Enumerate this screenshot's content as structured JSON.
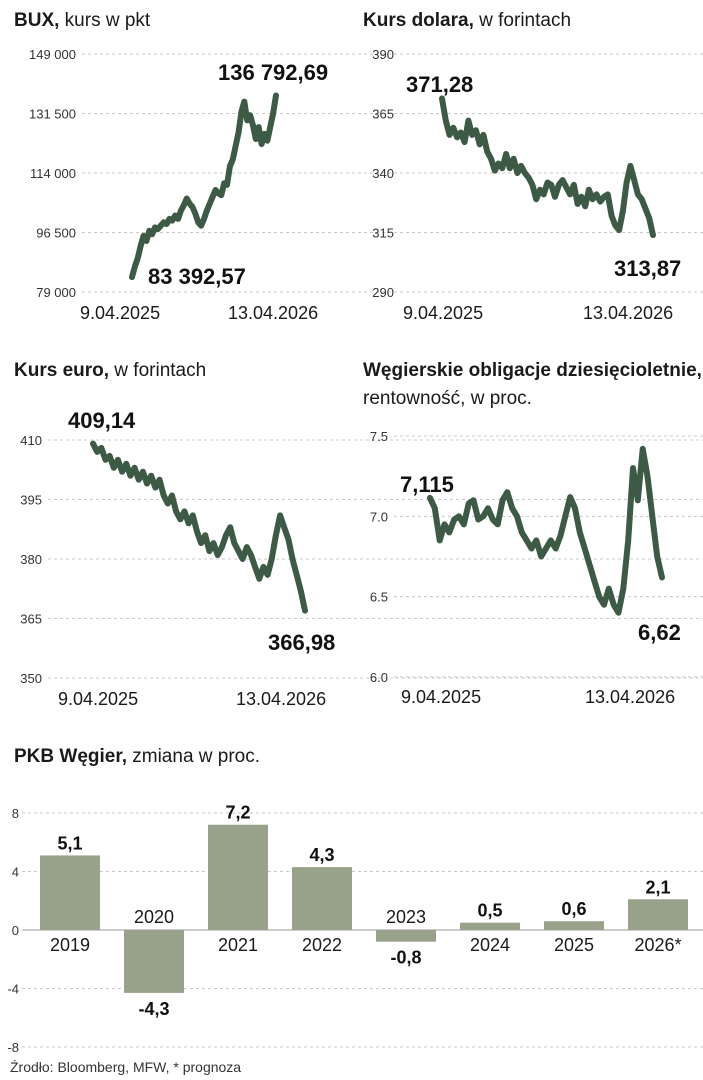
{
  "chart_data": [
    {
      "id": "bux",
      "type": "line",
      "title": "BUX,",
      "subtitle": "kurs w pkt",
      "ylim": [
        79000,
        149000
      ],
      "yticks": [
        149000,
        131500,
        114000,
        96500,
        79000
      ],
      "ytick_labels": [
        "149 000",
        "131 500",
        "114 000",
        "96 500",
        "79 000"
      ],
      "x_labels": [
        "9.04.2025",
        "13.04.2026"
      ],
      "grid": true,
      "start_annotation": "83 392,57",
      "end_annotation": "136 792,69",
      "series": [
        {
          "values": [
            83392,
            86500,
            89000,
            92500,
            95500,
            94000,
            97000,
            96000,
            98000,
            97500,
            98500,
            99500,
            99000,
            100500,
            100000,
            101500,
            100500,
            103000,
            104500,
            106500,
            105000,
            104000,
            102000,
            99500,
            98500,
            100500,
            103000,
            105000,
            107000,
            109000,
            108000,
            107500,
            111000,
            110500,
            116000,
            118000,
            122000,
            126000,
            132000,
            135000,
            129500,
            131000,
            128000,
            124000,
            127500,
            122500,
            125500,
            123500,
            127500,
            131500,
            136792
          ]
        }
      ]
    },
    {
      "id": "usd",
      "type": "line",
      "title": "Kurs dolara,",
      "subtitle": "w forintach",
      "ylim": [
        290,
        390
      ],
      "yticks": [
        390,
        365,
        340,
        315,
        290
      ],
      "ytick_labels": [
        "390",
        "365",
        "340",
        "315",
        "290"
      ],
      "x_labels": [
        "9.04.2025",
        "13.04.2026"
      ],
      "grid": true,
      "start_annotation": "371,28",
      "end_annotation": "313,87",
      "series": [
        {
          "values": [
            371.3,
            362,
            356,
            359,
            355,
            357,
            353,
            362,
            356,
            358,
            352,
            356,
            349,
            346,
            341,
            344,
            342,
            348,
            342,
            346,
            340,
            343,
            340,
            338,
            335,
            329,
            333,
            331,
            336,
            335,
            330,
            335,
            337,
            334,
            331,
            335,
            327,
            330,
            326,
            333,
            329,
            331,
            328,
            330,
            331,
            322,
            318,
            316,
            324,
            336,
            343,
            337,
            331,
            329,
            325,
            321,
            313.9
          ]
        }
      ]
    },
    {
      "id": "eur",
      "type": "line",
      "title": "Kurs euro,",
      "subtitle": "w forintach",
      "ylim": [
        350,
        410
      ],
      "yticks": [
        410,
        395,
        380,
        365,
        350
      ],
      "ytick_labels": [
        "410",
        "395",
        "380",
        "365",
        "350"
      ],
      "x_labels": [
        "9.04.2025",
        "13.04.2026"
      ],
      "grid": true,
      "start_annotation": "409,14",
      "end_annotation": "366,98",
      "series": [
        {
          "values": [
            409.1,
            407,
            408,
            405,
            406,
            403,
            405,
            402,
            404,
            401,
            403,
            400,
            402,
            399,
            401,
            398,
            400,
            396,
            394,
            396,
            392,
            390,
            392,
            389,
            391,
            387,
            384,
            386,
            382,
            384,
            381,
            383,
            386,
            388,
            384,
            382,
            380,
            383,
            381,
            378,
            375,
            378,
            376,
            380,
            386,
            391,
            388,
            385,
            380,
            376,
            372,
            366.98
          ]
        }
      ]
    },
    {
      "id": "bonds",
      "type": "line",
      "title": "Węgierskie obligacje dziesięcioletnie,",
      "subtitle": "rentowność, w proc.",
      "ylim": [
        6.0,
        7.5
      ],
      "yticks": [
        7.5,
        7.0,
        6.5,
        6.0
      ],
      "ytick_labels": [
        "7.5",
        "7.0",
        "6.5",
        "6.0"
      ],
      "x_labels": [
        "9.04.2025",
        "13.04.2026"
      ],
      "grid": true,
      "start_annotation": "7,115",
      "end_annotation": "6,62",
      "series": [
        {
          "values": [
            7.115,
            7.05,
            6.85,
            6.95,
            6.9,
            6.98,
            7.0,
            6.95,
            7.08,
            7.1,
            6.98,
            7.0,
            7.05,
            6.98,
            6.95,
            7.1,
            7.15,
            7.05,
            7.0,
            6.9,
            6.85,
            6.8,
            6.85,
            6.75,
            6.8,
            6.85,
            6.8,
            6.88,
            7.0,
            7.12,
            7.05,
            6.9,
            6.8,
            6.7,
            6.6,
            6.5,
            6.45,
            6.55,
            6.45,
            6.4,
            6.55,
            6.85,
            7.3,
            7.1,
            7.42,
            7.25,
            7.0,
            6.75,
            6.62
          ]
        }
      ]
    },
    {
      "id": "gdp",
      "type": "bar",
      "title": "PKB Węgier,",
      "subtitle": "zmiana w proc.",
      "categories": [
        "2019",
        "2020",
        "2021",
        "2022",
        "2023",
        "2024",
        "2025",
        "2026*"
      ],
      "values": [
        5.1,
        -4.3,
        7.2,
        4.3,
        -0.8,
        0.5,
        0.6,
        2.1
      ],
      "value_labels": [
        "5,1",
        "-4,3",
        "7,2",
        "4,3",
        "-0,8",
        "0,5",
        "0,6",
        "2,1"
      ],
      "ylim": [
        -8,
        8
      ],
      "yticks": [
        8,
        4,
        0,
        -4,
        -8
      ],
      "ytick_labels": [
        "8",
        "4",
        "0",
        "-4",
        "-8"
      ],
      "grid": true
    }
  ],
  "source": "Źrodło: Bloomberg, MFW,  * prognoza",
  "colors": {
    "line": "#3d5a45",
    "bar": "#98a28a",
    "grid": "#c8c8c8"
  }
}
